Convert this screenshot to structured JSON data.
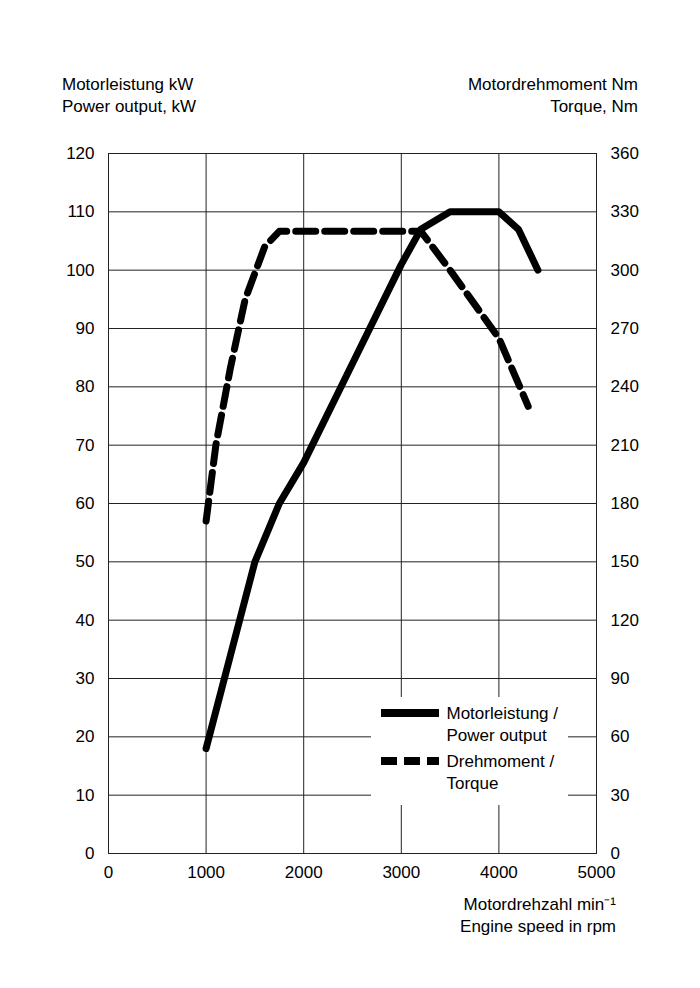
{
  "chart_data": {
    "type": "line",
    "y_label": [
      "Motorleistung kW",
      "Power output, kW"
    ],
    "y2_label": [
      "Motordrehmoment Nm",
      "Torque, Nm"
    ],
    "x_label": [
      "Motordrehzahl min⁻¹",
      "Engine speed in rpm"
    ],
    "xlim": [
      0,
      5000
    ],
    "xticks": [
      0,
      1000,
      2000,
      3000,
      4000,
      5000
    ],
    "ylim": [
      0,
      120
    ],
    "yticks": [
      0,
      10,
      20,
      30,
      40,
      50,
      60,
      70,
      80,
      90,
      100,
      110,
      120
    ],
    "y2lim": [
      0,
      360
    ],
    "y2ticks": [
      0,
      30,
      60,
      90,
      120,
      150,
      180,
      210,
      240,
      270,
      300,
      330,
      360
    ],
    "grid": true,
    "legend": "lower right",
    "series": [
      {
        "name": "Motorleistung / Power output",
        "color": "#000000",
        "line_style": "solid",
        "axis": "y",
        "x": [
          1000,
          1250,
          1500,
          1750,
          2000,
          2500,
          3000,
          3200,
          3500,
          4000,
          4200,
          4400
        ],
        "values": [
          18,
          34,
          50,
          60,
          67,
          84,
          101,
          107,
          110,
          110,
          107,
          100
        ]
      },
      {
        "name": "Drehmoment / Torque",
        "color": "#000000",
        "line_style": "dashed",
        "axis": "y2",
        "x": [
          1000,
          1100,
          1250,
          1400,
          1600,
          1750,
          3200,
          3500,
          4000,
          4300
        ],
        "values": [
          171,
          210,
          250,
          285,
          312,
          320,
          320,
          300,
          265,
          230
        ]
      }
    ]
  }
}
